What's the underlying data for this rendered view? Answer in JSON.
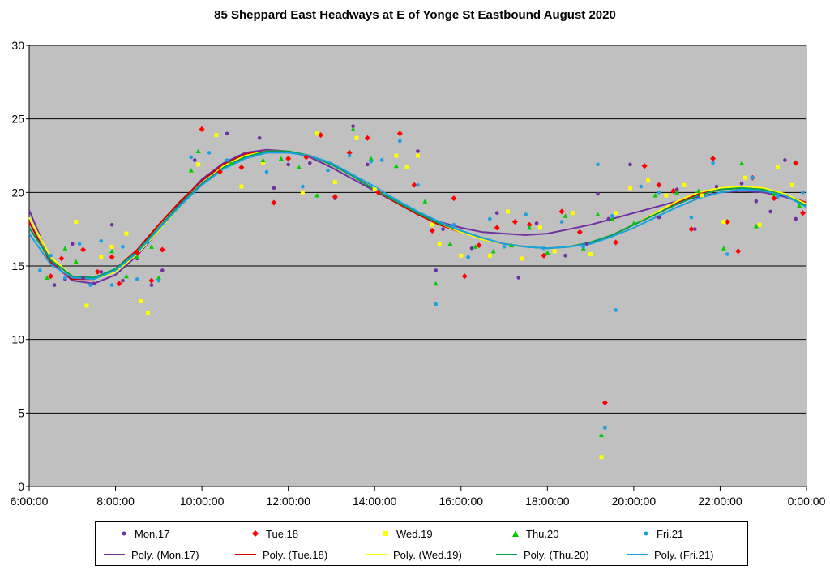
{
  "chart_data": {
    "type": "scatter",
    "title": "85 Sheppard  East Headways  at E of Yonge  St Eastbound  August  2020",
    "xlabel": "",
    "ylabel": "",
    "x_range": [
      "6:00:00",
      "0:00:00"
    ],
    "x_ticks": [
      "6:00:00",
      "8:00:00",
      "10:00:00",
      "12:00:00",
      "14:00:00",
      "16:00:00",
      "18:00:00",
      "20:00:00",
      "22:00:00",
      "0:00:00"
    ],
    "ylim": [
      0,
      30
    ],
    "y_ticks": [
      "0",
      "5",
      "10",
      "15",
      "20",
      "25",
      "30"
    ],
    "grid": "horizontal",
    "plot_background": "#c0c0c0",
    "legend_position": "bottom",
    "series": [
      {
        "name": "Mon.17",
        "color": "#7030a0",
        "marker": "dot",
        "x": [
          "6:35",
          "6:50",
          "7:00",
          "7:15",
          "7:30",
          "7:40",
          "7:55",
          "8:10",
          "8:30",
          "8:50",
          "9:05",
          "9:50",
          "10:35",
          "11:20",
          "11:40",
          "12:00",
          "12:30",
          "13:05",
          "13:30",
          "13:50",
          "15:00",
          "15:25",
          "15:35",
          "16:15",
          "16:50",
          "17:20",
          "17:45",
          "18:25",
          "18:55",
          "19:10",
          "19:25",
          "19:55",
          "20:35",
          "21:00",
          "21:25",
          "21:55",
          "22:30",
          "22:50",
          "23:10",
          "23:30",
          "23:45"
        ],
        "y": [
          13.7,
          14.1,
          16.5,
          14.2,
          13.8,
          14.6,
          17.8,
          14.0,
          15.5,
          13.7,
          14.7,
          22.2,
          24.0,
          23.7,
          20.3,
          21.9,
          22.0,
          19.6,
          24.5,
          21.9,
          22.8,
          14.7,
          17.5,
          16.2,
          18.6,
          14.2,
          17.9,
          15.7,
          16.5,
          19.9,
          18.2,
          21.9,
          18.3,
          20.2,
          17.5,
          20.4,
          20.6,
          19.4,
          18.7,
          22.2,
          18.2
        ]
      },
      {
        "name": "Tue.18",
        "color": "#ff0000",
        "marker": "diamond",
        "x": [
          "6:30",
          "6:45",
          "7:15",
          "7:35",
          "7:55",
          "8:05",
          "8:30",
          "8:50",
          "9:05",
          "10:00",
          "10:25",
          "10:55",
          "11:40",
          "12:00",
          "12:25",
          "12:45",
          "13:05",
          "13:25",
          "13:50",
          "14:05",
          "14:35",
          "14:55",
          "15:20",
          "15:50",
          "16:05",
          "16:25",
          "16:50",
          "17:15",
          "17:35",
          "17:55",
          "18:20",
          "18:45",
          "19:20",
          "19:35",
          "20:15",
          "20:35",
          "20:55",
          "21:20",
          "21:50",
          "22:10",
          "22:25",
          "22:45",
          "23:15",
          "23:45",
          "23:55"
        ],
        "y": [
          14.3,
          15.5,
          16.1,
          14.6,
          15.6,
          13.8,
          15.9,
          14.0,
          16.1,
          24.3,
          21.4,
          21.7,
          19.3,
          22.3,
          22.4,
          23.9,
          19.7,
          22.7,
          23.7,
          20.0,
          24.0,
          20.5,
          17.4,
          19.6,
          14.3,
          16.4,
          17.6,
          18.0,
          17.8,
          15.7,
          18.7,
          17.3,
          5.7,
          16.6,
          21.8,
          20.5,
          20.1,
          17.5,
          22.3,
          18.0,
          16.0,
          21.0,
          19.6,
          22.0,
          18.6
        ]
      },
      {
        "name": "Wed.19",
        "color": "#ffff00",
        "marker": "square",
        "x": [
          "7:05",
          "7:20",
          "7:40",
          "7:55",
          "8:15",
          "8:35",
          "8:45",
          "9:55",
          "10:20",
          "10:55",
          "11:25",
          "12:20",
          "12:40",
          "13:05",
          "13:35",
          "14:00",
          "14:30",
          "14:45",
          "15:00",
          "15:20",
          "15:30",
          "16:00",
          "16:40",
          "17:05",
          "17:25",
          "17:50",
          "18:10",
          "18:35",
          "19:00",
          "19:15",
          "19:35",
          "19:55",
          "20:20",
          "20:45",
          "21:10",
          "21:35",
          "22:05",
          "22:35",
          "22:55",
          "23:20",
          "23:40"
        ],
        "y": [
          18.0,
          12.3,
          15.6,
          16.3,
          17.2,
          12.6,
          11.8,
          21.9,
          23.9,
          20.4,
          22.0,
          20.0,
          24.0,
          20.7,
          23.7,
          20.2,
          22.5,
          21.7,
          22.5,
          17.8,
          16.5,
          15.7,
          15.7,
          18.7,
          15.5,
          17.6,
          16.0,
          18.6,
          15.8,
          2.0,
          18.6,
          20.3,
          20.8,
          19.8,
          20.5,
          19.8,
          18.0,
          21.0,
          17.8,
          21.7,
          20.5
        ]
      },
      {
        "name": "Thu.20",
        "color": "#00cc00",
        "marker": "triangle",
        "x": [
          "6:25",
          "6:50",
          "7:05",
          "7:55",
          "8:15",
          "8:30",
          "8:50",
          "9:00",
          "9:45",
          "9:55",
          "10:40",
          "11:25",
          "11:50",
          "12:15",
          "12:40",
          "13:30",
          "13:55",
          "14:30",
          "15:10",
          "15:25",
          "15:45",
          "16:20",
          "16:45",
          "17:10",
          "17:35",
          "18:00",
          "18:25",
          "18:50",
          "19:10",
          "19:15",
          "19:30",
          "20:00",
          "20:30",
          "21:00",
          "21:30",
          "22:05",
          "22:30",
          "22:50",
          "23:15",
          "23:50"
        ],
        "y": [
          14.2,
          16.2,
          15.3,
          16.0,
          14.3,
          15.6,
          16.3,
          14.2,
          21.5,
          22.8,
          22.0,
          22.2,
          22.3,
          21.7,
          19.8,
          24.3,
          22.3,
          21.8,
          19.4,
          13.8,
          16.5,
          16.3,
          16.0,
          16.4,
          17.6,
          15.9,
          18.4,
          16.2,
          18.5,
          3.5,
          18.2,
          17.9,
          19.8,
          20.0,
          20.1,
          16.2,
          22.0,
          17.7,
          19.9,
          19.1
        ]
      },
      {
        "name": "Fri.21",
        "color": "#1ba1e2",
        "marker": "dot",
        "x": [
          "6:15",
          "6:30",
          "6:50",
          "7:10",
          "7:25",
          "7:40",
          "7:55",
          "8:10",
          "8:30",
          "8:45",
          "9:00",
          "9:45",
          "10:10",
          "10:35",
          "11:30",
          "12:20",
          "12:55",
          "13:25",
          "13:55",
          "14:10",
          "14:35",
          "15:00",
          "15:25",
          "15:50",
          "16:10",
          "16:40",
          "17:00",
          "17:30",
          "17:55",
          "18:20",
          "18:50",
          "19:10",
          "19:20",
          "19:30",
          "19:35",
          "20:10",
          "20:35",
          "21:20",
          "21:50",
          "22:10",
          "22:45",
          "23:20",
          "23:55"
        ],
        "y": [
          14.7,
          15.7,
          14.2,
          16.5,
          13.7,
          16.7,
          13.7,
          16.3,
          14.1,
          16.6,
          14.0,
          22.4,
          22.7,
          22.2,
          21.4,
          20.4,
          21.5,
          22.5,
          22.1,
          22.2,
          23.5,
          20.5,
          12.4,
          17.8,
          15.6,
          18.2,
          16.3,
          18.5,
          16.2,
          18.0,
          16.3,
          21.9,
          4.0,
          18.4,
          12.0,
          20.4,
          20.0,
          18.3,
          22.0,
          15.8,
          21.0,
          19.7,
          20.0
        ]
      }
    ],
    "trendlines": [
      {
        "name": "Poly. (Mon.17)",
        "color": "#7030a0",
        "x": [
          "6:00",
          "6:30",
          "7:00",
          "7:30",
          "8:00",
          "8:30",
          "9:00",
          "9:30",
          "10:00",
          "10:30",
          "11:00",
          "11:30",
          "12:00",
          "12:30",
          "13:00",
          "13:30",
          "14:00",
          "14:30",
          "15:00",
          "15:30",
          "16:00",
          "16:30",
          "17:00",
          "17:30",
          "18:00",
          "18:30",
          "19:00",
          "19:30",
          "20:00",
          "20:30",
          "21:00",
          "21:30",
          "22:00",
          "22:30",
          "23:00",
          "23:30",
          "0:00"
        ],
        "y": [
          18.8,
          15.3,
          14.0,
          13.8,
          14.4,
          15.7,
          17.4,
          19.3,
          20.9,
          22.0,
          22.7,
          22.9,
          22.8,
          22.4,
          21.7,
          20.9,
          20.1,
          19.3,
          18.6,
          18.0,
          17.6,
          17.3,
          17.2,
          17.1,
          17.2,
          17.5,
          17.8,
          18.2,
          18.6,
          19.0,
          19.4,
          19.7,
          20.0,
          20.1,
          20.0,
          19.7,
          19.2
        ]
      },
      {
        "name": "Poly. (Tue.18)",
        "color": "#cc0000",
        "x": [
          "6:00",
          "6:30",
          "7:00",
          "7:30",
          "8:00",
          "8:30",
          "9:00",
          "9:30",
          "10:00",
          "10:30",
          "11:00",
          "11:30",
          "12:00",
          "12:30",
          "13:00",
          "13:30",
          "14:00",
          "14:30",
          "15:00",
          "15:30",
          "16:00",
          "16:30",
          "17:00",
          "17:30",
          "18:00",
          "18:30",
          "19:00",
          "19:30",
          "20:00",
          "20:30",
          "21:00",
          "21:30",
          "22:00",
          "22:30",
          "23:00",
          "23:30",
          "0:00"
        ],
        "y": [
          18.0,
          15.2,
          14.1,
          14.1,
          14.8,
          16.1,
          17.8,
          19.4,
          20.8,
          21.9,
          22.6,
          22.8,
          22.8,
          22.5,
          21.9,
          21.1,
          20.2,
          19.3,
          18.5,
          17.8,
          17.3,
          16.8,
          16.5,
          16.3,
          16.2,
          16.3,
          16.6,
          17.1,
          17.8,
          18.6,
          19.3,
          19.9,
          20.2,
          20.3,
          20.2,
          19.8,
          19.3
        ]
      },
      {
        "name": "Poly. (Wed.19)",
        "color": "#ffff00",
        "x": [
          "6:00",
          "6:30",
          "7:00",
          "7:30",
          "8:00",
          "8:30",
          "9:00",
          "9:30",
          "10:00",
          "10:30",
          "11:00",
          "11:30",
          "12:00",
          "12:30",
          "13:00",
          "13:30",
          "14:00",
          "14:30",
          "15:00",
          "15:30",
          "16:00",
          "16:30",
          "17:00",
          "17:30",
          "18:00",
          "18:30",
          "19:00",
          "19:30",
          "20:00",
          "20:30",
          "21:00",
          "21:30",
          "22:00",
          "22:30",
          "23:00",
          "23:30",
          "0:00"
        ],
        "y": [
          18.3,
          15.6,
          14.3,
          14.1,
          14.6,
          15.8,
          17.4,
          19.1,
          20.6,
          21.8,
          22.5,
          22.8,
          22.8,
          22.5,
          21.9,
          21.1,
          20.2,
          19.4,
          18.6,
          17.9,
          17.3,
          16.8,
          16.5,
          16.3,
          16.2,
          16.3,
          16.6,
          17.1,
          17.8,
          18.6,
          19.4,
          20.0,
          20.3,
          20.4,
          20.3,
          19.9,
          19.2
        ]
      },
      {
        "name": "Poly. (Thu.20)",
        "color": "#00a050",
        "x": [
          "6:00",
          "6:30",
          "7:00",
          "7:30",
          "8:00",
          "8:30",
          "9:00",
          "9:30",
          "10:00",
          "10:30",
          "11:00",
          "11:30",
          "12:00",
          "12:30",
          "13:00",
          "13:30",
          "14:00",
          "14:30",
          "15:00",
          "15:30",
          "16:00",
          "16:30",
          "17:00",
          "17:30",
          "18:00",
          "18:30",
          "19:00",
          "19:30",
          "20:00",
          "20:30",
          "21:00",
          "21:30",
          "22:00",
          "22:30",
          "23:00",
          "23:30",
          "0:00"
        ],
        "y": [
          17.6,
          15.4,
          14.3,
          14.2,
          14.8,
          16.0,
          17.6,
          19.2,
          20.6,
          21.7,
          22.4,
          22.8,
          22.8,
          22.5,
          21.9,
          21.1,
          20.2,
          19.4,
          18.6,
          17.9,
          17.4,
          16.9,
          16.5,
          16.3,
          16.2,
          16.3,
          16.6,
          17.1,
          17.8,
          18.5,
          19.2,
          19.8,
          20.2,
          20.3,
          20.2,
          19.8,
          19.1
        ]
      },
      {
        "name": "Poly. (Fri.21)",
        "color": "#1ba1e2",
        "x": [
          "6:00",
          "6:30",
          "7:00",
          "7:30",
          "8:00",
          "8:30",
          "9:00",
          "9:30",
          "10:00",
          "10:30",
          "11:00",
          "11:30",
          "12:00",
          "12:30",
          "13:00",
          "13:30",
          "14:00",
          "14:30",
          "15:00",
          "15:30",
          "16:00",
          "16:30",
          "17:00",
          "17:30",
          "18:00",
          "18:30",
          "19:00",
          "19:30",
          "20:00",
          "20:30",
          "21:00",
          "21:30",
          "22:00",
          "22:30",
          "23:00",
          "23:30",
          "0:00"
        ],
        "y": [
          17.2,
          15.1,
          14.2,
          14.1,
          14.7,
          15.9,
          17.5,
          19.1,
          20.5,
          21.6,
          22.3,
          22.7,
          22.7,
          22.5,
          22.0,
          21.2,
          20.4,
          19.5,
          18.7,
          18.0,
          17.4,
          16.9,
          16.5,
          16.3,
          16.2,
          16.3,
          16.5,
          17.0,
          17.6,
          18.3,
          19.0,
          19.6,
          20.0,
          20.2,
          20.1,
          19.8,
          19.0
        ]
      }
    ]
  },
  "legend": {
    "row1": [
      "Mon.17",
      "Tue.18",
      "Wed.19",
      "Thu.20",
      "Fri.21"
    ],
    "row2": [
      "Poly. (Mon.17)",
      "Poly. (Tue.18)",
      "Poly. (Wed.19)",
      "Poly. (Thu.20)",
      "Poly. (Fri.21)"
    ]
  }
}
